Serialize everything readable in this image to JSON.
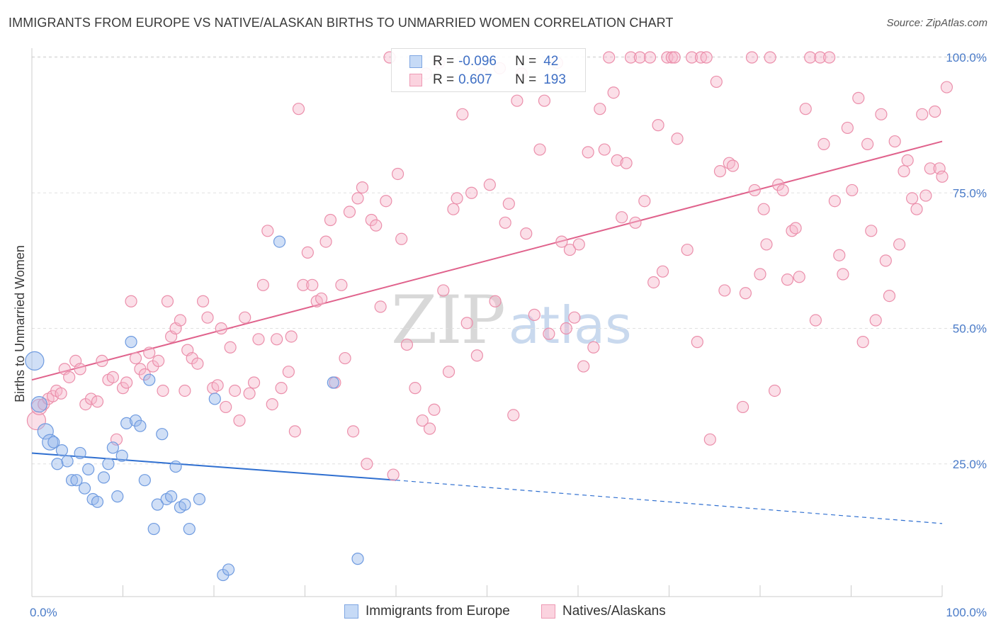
{
  "title": "IMMIGRANTS FROM EUROPE VS NATIVE/ALASKAN BIRTHS TO UNMARRIED WOMEN CORRELATION CHART",
  "source": "Source: ZipAtlas.com",
  "watermark": {
    "zip": "ZIP",
    "atlas": "atlas"
  },
  "legend_top": {
    "rows": [
      {
        "r_label": "R =",
        "r_value": "-0.096",
        "n_label": "N =",
        "n_value": "42",
        "color": "#a8c6f0"
      },
      {
        "r_label": "R =",
        "r_value": "0.607",
        "n_label": "N =",
        "n_value": "193",
        "color": "#f7b8cb"
      }
    ]
  },
  "legend_bottom": [
    {
      "label": "Immigrants from Europe",
      "color": "#a8c6f0"
    },
    {
      "label": "Natives/Alaskans",
      "color": "#f7b8cb"
    }
  ],
  "colors": {
    "blue_fill": "rgba(150,185,235,0.45)",
    "blue_stroke": "#6f9be0",
    "blue_line": "#2f6fd0",
    "pink_fill": "rgba(247,184,203,0.45)",
    "pink_stroke": "#eb8fab",
    "pink_line": "#e0628c",
    "grid": "#e0e0e0",
    "axis": "#cccccc",
    "tick_text": "#4a7bc8"
  },
  "chart_data": {
    "type": "scatter",
    "title": "IMMIGRANTS FROM EUROPE VS NATIVE/ALASKAN BIRTHS TO UNMARRIED WOMEN CORRELATION CHART",
    "xlabel": "",
    "ylabel": "Births to Unmarried Women",
    "xlim": [
      0,
      100
    ],
    "ylim": [
      0,
      102
    ],
    "x_tick_labels": [
      "0.0%",
      "100.0%"
    ],
    "y_ticks": [
      25,
      50,
      75,
      100
    ],
    "y_tick_labels": [
      "25.0%",
      "50.0%",
      "75.0%",
      "100.0%"
    ],
    "grid": true,
    "series": [
      {
        "name": "Immigrants from Europe",
        "r": -0.096,
        "n": 42,
        "trend": {
          "x0": 0,
          "y0": 27,
          "x1": 40,
          "y1": 22,
          "dash_x1": 100,
          "dash_y1": 14
        },
        "points": [
          [
            0.3,
            44,
            "L"
          ],
          [
            0.8,
            36,
            "M"
          ],
          [
            1.5,
            31,
            "M"
          ],
          [
            2,
            29,
            "M"
          ],
          [
            2.4,
            29
          ],
          [
            2.8,
            25
          ],
          [
            3.3,
            27.5
          ],
          [
            3.9,
            25.5
          ],
          [
            4.4,
            22
          ],
          [
            4.9,
            22
          ],
          [
            5.3,
            27
          ],
          [
            5.8,
            20.5
          ],
          [
            6.2,
            24
          ],
          [
            6.7,
            18.5
          ],
          [
            7.2,
            18
          ],
          [
            7.9,
            22.5
          ],
          [
            8.4,
            25
          ],
          [
            8.9,
            28
          ],
          [
            9.4,
            19
          ],
          [
            9.9,
            26.5
          ],
          [
            10.4,
            32.5
          ],
          [
            10.9,
            47.5
          ],
          [
            11.4,
            33
          ],
          [
            11.9,
            32
          ],
          [
            12.4,
            22
          ],
          [
            12.9,
            40.5
          ],
          [
            13.4,
            13
          ],
          [
            13.8,
            17.5
          ],
          [
            14.3,
            30.5
          ],
          [
            14.8,
            18.5
          ],
          [
            15.3,
            19
          ],
          [
            15.8,
            24.5
          ],
          [
            16.3,
            17
          ],
          [
            16.8,
            17.5
          ],
          [
            17.3,
            13
          ],
          [
            18.4,
            18.5
          ],
          [
            20.1,
            37
          ],
          [
            21,
            4.5
          ],
          [
            21.6,
            5.5
          ],
          [
            27.2,
            66
          ],
          [
            33.1,
            40
          ],
          [
            35.8,
            7.5
          ]
        ]
      },
      {
        "name": "Natives/Alaskans",
        "r": 0.607,
        "n": 193,
        "trend": {
          "x0": 0,
          "y0": 40.5,
          "x1": 100,
          "y1": 84.5
        },
        "points": [
          [
            0.5,
            33,
            "L"
          ],
          [
            0.8,
            35.5,
            "M"
          ],
          [
            1.3,
            36
          ],
          [
            1.8,
            37
          ],
          [
            2.3,
            37.5
          ],
          [
            2.7,
            38.5
          ],
          [
            3.2,
            38
          ],
          [
            3.6,
            42.5
          ],
          [
            4.1,
            41
          ],
          [
            4.8,
            44
          ],
          [
            5.3,
            42.5
          ],
          [
            5.9,
            36
          ],
          [
            6.5,
            37
          ],
          [
            7.2,
            36.5
          ],
          [
            7.7,
            44
          ],
          [
            8.4,
            40.5
          ],
          [
            8.9,
            41
          ],
          [
            9.3,
            29.5
          ],
          [
            10,
            39
          ],
          [
            10.4,
            40
          ],
          [
            10.9,
            55
          ],
          [
            11.4,
            44.5
          ],
          [
            11.9,
            42.5
          ],
          [
            12.4,
            41.5
          ],
          [
            12.9,
            45.5
          ],
          [
            13.3,
            43
          ],
          [
            13.9,
            44
          ],
          [
            14.4,
            38.5
          ],
          [
            14.9,
            55
          ],
          [
            15.3,
            48.5
          ],
          [
            15.8,
            50
          ],
          [
            16.3,
            51.5
          ],
          [
            16.8,
            38.5
          ],
          [
            17.1,
            46
          ],
          [
            17.6,
            44.5
          ],
          [
            18.2,
            43.5
          ],
          [
            18.8,
            55
          ],
          [
            19.3,
            52
          ],
          [
            19.9,
            39
          ],
          [
            20.4,
            39.5
          ],
          [
            20.8,
            50
          ],
          [
            21.3,
            35.5
          ],
          [
            21.8,
            46.5
          ],
          [
            22.3,
            38.5
          ],
          [
            22.8,
            33
          ],
          [
            23.4,
            52
          ],
          [
            23.9,
            38
          ],
          [
            24.4,
            40
          ],
          [
            24.9,
            48
          ],
          [
            25.4,
            58
          ],
          [
            25.9,
            68
          ],
          [
            26.4,
            36
          ],
          [
            26.9,
            48
          ],
          [
            27.4,
            39
          ],
          [
            28.2,
            42
          ],
          [
            28.5,
            48.5
          ],
          [
            28.9,
            31
          ],
          [
            29.3,
            90.5
          ],
          [
            29.8,
            58
          ],
          [
            30.3,
            64
          ],
          [
            30.8,
            58
          ],
          [
            31.3,
            55
          ],
          [
            31.8,
            55.5
          ],
          [
            32.3,
            66
          ],
          [
            32.8,
            70
          ],
          [
            33.3,
            40
          ],
          [
            34,
            58
          ],
          [
            34.4,
            44.5
          ],
          [
            34.9,
            71.5
          ],
          [
            35.3,
            31
          ],
          [
            35.8,
            74
          ],
          [
            36.3,
            76
          ],
          [
            36.8,
            25
          ],
          [
            37.3,
            70
          ],
          [
            37.8,
            69
          ],
          [
            38.3,
            54
          ],
          [
            38.9,
            73.5
          ],
          [
            39.3,
            100
          ],
          [
            39.7,
            23
          ],
          [
            40.2,
            78.5
          ],
          [
            40.6,
            66.5
          ],
          [
            41.2,
            47
          ],
          [
            42.1,
            39
          ],
          [
            42.9,
            33
          ],
          [
            43.3,
            97
          ],
          [
            43.7,
            31.5
          ],
          [
            44.2,
            35
          ],
          [
            44.7,
            99
          ],
          [
            45.2,
            57
          ],
          [
            45.8,
            42
          ],
          [
            46.3,
            72
          ],
          [
            46.7,
            74
          ],
          [
            47.3,
            89.5
          ],
          [
            47.8,
            51
          ],
          [
            48.3,
            75
          ],
          [
            48.9,
            45
          ],
          [
            49.4,
            97
          ],
          [
            50.3,
            76.5
          ],
          [
            50.9,
            55
          ],
          [
            51.4,
            98
          ],
          [
            52,
            69.5
          ],
          [
            52.4,
            73
          ],
          [
            52.9,
            34
          ],
          [
            53.3,
            92
          ],
          [
            53.8,
            97
          ],
          [
            54.3,
            67.5
          ],
          [
            55.2,
            52.5
          ],
          [
            55.8,
            83
          ],
          [
            56.3,
            92
          ],
          [
            56.8,
            49
          ],
          [
            57.7,
            99
          ],
          [
            58.2,
            66
          ],
          [
            58.7,
            50
          ],
          [
            59.1,
            64.5
          ],
          [
            59.6,
            52
          ],
          [
            60.1,
            65.5
          ],
          [
            60.6,
            43
          ],
          [
            61.1,
            82.5
          ],
          [
            61.7,
            46.5
          ],
          [
            62.4,
            90.5
          ],
          [
            62.9,
            83
          ],
          [
            63.4,
            100
          ],
          [
            63.9,
            93.5
          ],
          [
            64.3,
            81
          ],
          [
            64.8,
            70.5
          ],
          [
            65.3,
            80.5
          ],
          [
            65.8,
            100
          ],
          [
            66.3,
            69.5
          ],
          [
            66.8,
            100
          ],
          [
            67.3,
            73.5
          ],
          [
            67.9,
            100
          ],
          [
            68.3,
            58.5
          ],
          [
            68.8,
            87.5
          ],
          [
            69.3,
            60.5
          ],
          [
            69.8,
            100
          ],
          [
            70.3,
            100
          ],
          [
            70.6,
            100
          ],
          [
            70.9,
            85
          ],
          [
            72,
            64.5
          ],
          [
            72.5,
            100
          ],
          [
            73.1,
            47.5
          ],
          [
            73.5,
            100
          ],
          [
            74.1,
            100
          ],
          [
            74.5,
            29.5
          ],
          [
            75.2,
            95.5
          ],
          [
            75.6,
            79
          ],
          [
            76.1,
            57
          ],
          [
            76.6,
            80.5
          ],
          [
            77,
            80
          ],
          [
            78.1,
            35.5
          ],
          [
            78.4,
            56.5
          ],
          [
            79.1,
            100
          ],
          [
            79.4,
            75.5
          ],
          [
            80,
            60
          ],
          [
            80.4,
            72
          ],
          [
            80.7,
            65.5
          ],
          [
            81.1,
            100
          ],
          [
            81.6,
            38.5
          ],
          [
            82,
            76.5
          ],
          [
            82.5,
            75.5
          ],
          [
            83,
            59
          ],
          [
            83.5,
            68
          ],
          [
            83.9,
            68.5
          ],
          [
            84.3,
            59.5
          ],
          [
            85,
            90.5
          ],
          [
            85.5,
            100
          ],
          [
            86.1,
            51.5
          ],
          [
            86.6,
            100
          ],
          [
            87,
            84
          ],
          [
            87.6,
            100
          ],
          [
            88.2,
            73.5
          ],
          [
            88.7,
            63.5
          ],
          [
            89.1,
            60
          ],
          [
            89.6,
            87
          ],
          [
            90.1,
            75.5
          ],
          [
            90.8,
            92.5
          ],
          [
            91.3,
            47.5
          ],
          [
            91.8,
            84
          ],
          [
            92.2,
            68
          ],
          [
            92.7,
            51.5
          ],
          [
            93.3,
            89.5
          ],
          [
            93.8,
            62.5
          ],
          [
            94.2,
            56
          ],
          [
            94.8,
            84.5
          ],
          [
            95.3,
            65.5
          ],
          [
            95.8,
            79
          ],
          [
            96.2,
            81
          ],
          [
            96.7,
            74
          ],
          [
            97.2,
            72
          ],
          [
            97.8,
            89.5
          ],
          [
            98.2,
            74.5
          ],
          [
            98.7,
            79.5
          ],
          [
            99.2,
            90
          ],
          [
            99.7,
            79.5
          ],
          [
            100,
            78
          ],
          [
            100.5,
            94.5
          ]
        ]
      }
    ]
  }
}
